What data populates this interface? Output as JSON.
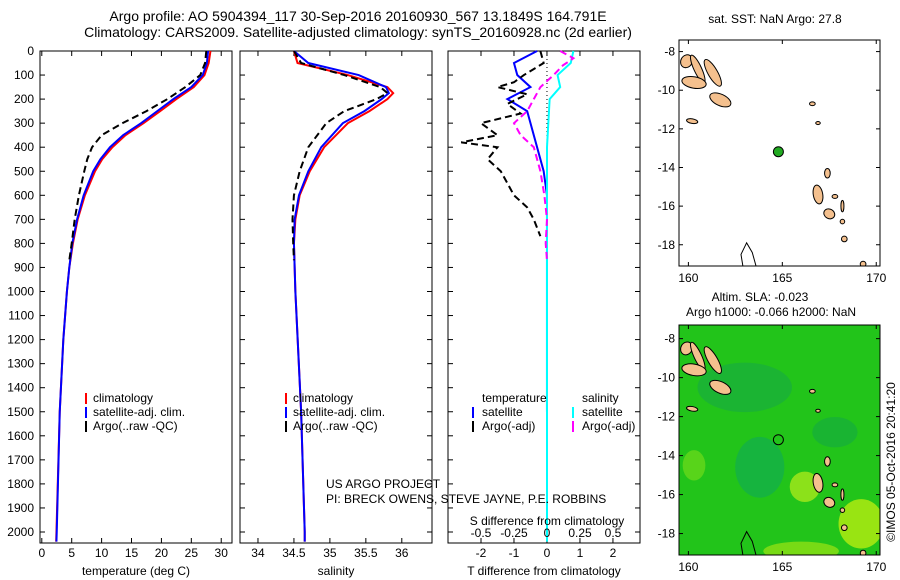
{
  "title_line1": "Argo profile: AO 5904394_117 30-Sep-2016 20160930_567 13.1849S 164.791E",
  "title_line2": "Climatology: CARS2009. Satellite-adjusted climatology: synTS_20160928.nc (2d earlier)",
  "credit_line1": "US ARGO PROJECT",
  "credit_line2": "PI: BRECK OWENS, STEVE JAYNE, P.E. ROBBINS",
  "stamp": "©IMOS 05-Oct-2016 20:41:20",
  "colors": {
    "climatology": "#ff0000",
    "satellite": "#0000ff",
    "argo": "#000000",
    "sal_sat": "#00ffff",
    "sal_argo": "#ff00ff",
    "land": "#f4c08e",
    "marker_fill": "#22aa22"
  },
  "chart_data": [
    {
      "type": "line",
      "name": "temperature",
      "xlabel": "temperature (deg C)",
      "ylabel": "",
      "xlim": [
        -0.3,
        31.8
      ],
      "ylim": [
        2046,
        0
      ],
      "xticks": [
        0,
        5,
        10,
        15,
        20,
        25,
        30
      ],
      "yticks": [
        0,
        100,
        200,
        300,
        400,
        500,
        600,
        700,
        800,
        900,
        1000,
        1100,
        1200,
        1300,
        1400,
        1500,
        1600,
        1700,
        1800,
        1900,
        2000
      ],
      "depth": [
        0,
        50,
        100,
        150,
        200,
        250,
        300,
        350,
        400,
        450,
        500,
        600,
        700,
        800,
        900,
        1000,
        1200,
        1500,
        2000,
        2040
      ],
      "legend": [
        "climatology",
        "satellite-adj. clim.",
        "Argo(..raw -QC)"
      ],
      "series": [
        {
          "name": "climatology",
          "values": [
            28.2,
            27.9,
            27.2,
            25.4,
            22.5,
            19.8,
            17,
            14,
            11.8,
            10.1,
            8.9,
            7.2,
            6,
            5.2,
            4.6,
            4.2,
            3.6,
            3,
            2.45,
            2.4
          ]
        },
        {
          "name": "satellite-adj. clim.",
          "values": [
            27.8,
            27.6,
            26.9,
            25,
            22,
            19.3,
            16.6,
            13.6,
            11.4,
            9.8,
            8.6,
            7,
            5.9,
            5.1,
            4.6,
            4.2,
            3.6,
            3,
            2.5,
            2.45
          ]
        },
        {
          "name": "Argo(..raw -QC)",
          "depth": [
            0,
            50,
            100,
            150,
            200,
            250,
            300,
            350,
            400,
            450,
            500,
            600,
            700,
            800,
            870
          ],
          "values": [
            27.5,
            27.3,
            26.5,
            24,
            21,
            17.5,
            13.5,
            10,
            8.4,
            7.6,
            7.1,
            6.2,
            5.5,
            5,
            4.6
          ]
        }
      ]
    },
    {
      "type": "line",
      "name": "salinity",
      "xlabel": "salinity",
      "xlim": [
        33.75,
        36.42
      ],
      "ylim": [
        2046,
        0
      ],
      "xticks": [
        34,
        34.5,
        35,
        35.5,
        36
      ],
      "depth": [
        0,
        50,
        100,
        150,
        175,
        200,
        250,
        300,
        400,
        500,
        600,
        700,
        800,
        1000,
        1500,
        2000,
        2040
      ],
      "legend": [
        "climatology",
        "satellite-adj. clim.",
        "Argo(..raw -QC)"
      ],
      "series": [
        {
          "name": "climatology",
          "values": [
            34.5,
            34.55,
            35.25,
            35.8,
            35.88,
            35.8,
            35.55,
            35.25,
            34.92,
            34.72,
            34.58,
            34.52,
            34.5,
            34.52,
            34.6,
            34.65,
            34.65
          ]
        },
        {
          "name": "satellite-adj. clim.",
          "values": [
            34.5,
            34.7,
            35.4,
            35.78,
            35.82,
            35.72,
            35.48,
            35.18,
            34.88,
            34.7,
            34.57,
            34.51,
            34.5,
            34.52,
            34.6,
            34.65,
            34.65
          ]
        },
        {
          "name": "Argo(..raw -QC)",
          "depth": [
            0,
            50,
            100,
            150,
            175,
            200,
            250,
            300,
            400,
            500,
            600,
            700,
            800,
            870
          ],
          "values": [
            34.5,
            34.6,
            35.2,
            35.7,
            35.8,
            35.65,
            35.2,
            34.95,
            34.7,
            34.58,
            34.5,
            34.48,
            34.49,
            34.5
          ]
        }
      ]
    },
    {
      "type": "line",
      "name": "difference",
      "xlabel": "T difference from climatology",
      "x2label": "S difference from climatology",
      "xlim": [
        -3,
        2.82
      ],
      "ylim": [
        2046,
        0
      ],
      "xticks": [
        -2,
        -1,
        0,
        1,
        2
      ],
      "x2ticks": [
        -0.5,
        -0.25,
        0,
        0.25,
        0.5
      ],
      "legend_titles": [
        "temperature",
        "salinity"
      ],
      "legend": [
        "satellite",
        "Argo(-adj)",
        "satellite",
        "Argo(-adj)"
      ],
      "series": [
        {
          "name": "T satellite",
          "axis": "T",
          "depth": [
            0,
            50,
            100,
            150,
            200,
            250,
            300,
            400,
            500,
            600,
            800,
            1000,
            1500
          ],
          "values": [
            -0.3,
            -1,
            -0.9,
            -0.5,
            -1.2,
            -0.6,
            -0.5,
            -0.3,
            -0.1,
            0,
            0,
            0,
            0
          ]
        },
        {
          "name": "T Argo(-adj)",
          "axis": "T",
          "depth": [
            0,
            50,
            100,
            130,
            150,
            180,
            220,
            260,
            300,
            350,
            380,
            400,
            450,
            500,
            550,
            600,
            650,
            700,
            770
          ],
          "values": [
            -0.2,
            -0.1,
            -0.7,
            -1,
            -1.5,
            -0.6,
            -1.2,
            -0.8,
            -2,
            -1.5,
            -2.6,
            -1.5,
            -1.8,
            -1.4,
            -1.2,
            -1,
            -0.6,
            -0.4,
            -0.2
          ]
        },
        {
          "name": "S satellite",
          "axis": "S",
          "depth": [
            0,
            50,
            100,
            150,
            200,
            300,
            400,
            500,
            700,
            1000,
            2040
          ],
          "values": [
            0.2,
            0.18,
            0.08,
            0.1,
            0.02,
            0.01,
            0,
            0,
            0,
            0,
            0
          ]
        },
        {
          "name": "S Argo(-adj)",
          "axis": "S",
          "depth": [
            0,
            30,
            60,
            100,
            150,
            200,
            250,
            300,
            350,
            400,
            500,
            600,
            700,
            800,
            870
          ],
          "values": [
            0.1,
            0.2,
            0.12,
            0.05,
            -0.05,
            -0.1,
            -0.15,
            -0.25,
            -0.2,
            -0.1,
            -0.05,
            -0.02,
            0,
            -0.01,
            0
          ]
        }
      ]
    },
    {
      "type": "map",
      "name": "sst_map",
      "title": "sat. SST: NaN Argo: 27.8",
      "xlim": [
        159.5,
        170.2
      ],
      "ylim": [
        -19.1,
        -7.4
      ],
      "xticks": [
        160,
        165,
        170
      ],
      "yticks": [
        -8,
        -10,
        -12,
        -14,
        -16,
        -18
      ],
      "marker": [
        164.791,
        -13.1849
      ]
    },
    {
      "type": "map",
      "name": "sla_map",
      "title": "Altim. SLA: -0.023",
      "subtitle": "Argo h1000: -0.066 h2000: NaN",
      "xlim": [
        159.5,
        170.2
      ],
      "ylim": [
        -19.1,
        -7.3
      ],
      "xticks": [
        160,
        165,
        170
      ],
      "yticks": [
        -8,
        -10,
        -12,
        -14,
        -16,
        -18
      ],
      "marker": [
        164.791,
        -13.1849
      ]
    }
  ],
  "islands": [
    [
      159.9,
      -8.5,
      0.3,
      0.35,
      30
    ],
    [
      160.5,
      -8.9,
      0.2,
      0.8,
      -25
    ],
    [
      160.3,
      -9.6,
      0.65,
      0.3,
      10
    ],
    [
      161.3,
      -9.1,
      0.25,
      0.8,
      -30
    ],
    [
      161.7,
      -10.5,
      0.6,
      0.3,
      25
    ],
    [
      160.2,
      -11.6,
      0.3,
      0.12,
      10
    ],
    [
      166.6,
      -10.7,
      0.15,
      0.1,
      0
    ],
    [
      166.9,
      -11.7,
      0.12,
      0.08,
      0
    ],
    [
      167.4,
      -14.3,
      0.15,
      0.25,
      0
    ],
    [
      166.9,
      -15.4,
      0.25,
      0.5,
      -10
    ],
    [
      167.8,
      -15.5,
      0.15,
      0.1,
      0
    ],
    [
      167.5,
      -16.4,
      0.3,
      0.25,
      30
    ],
    [
      168.2,
      -16.0,
      0.08,
      0.3,
      0
    ],
    [
      168.2,
      -16.8,
      0.12,
      0.12,
      0
    ],
    [
      168.3,
      -17.7,
      0.15,
      0.15,
      0
    ],
    [
      169.3,
      -19.0,
      0.15,
      0.15,
      0
    ]
  ]
}
